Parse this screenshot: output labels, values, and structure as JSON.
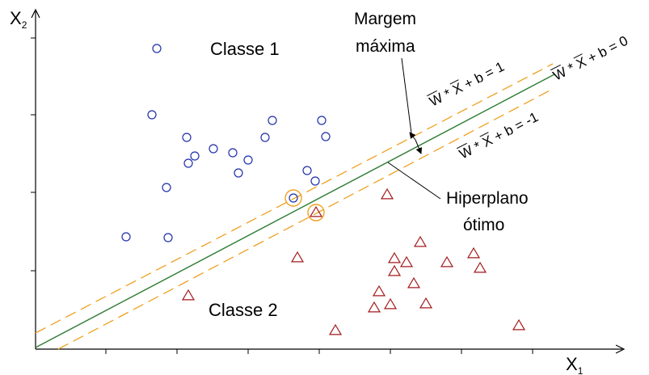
{
  "axes": {
    "x_label": "X",
    "x_sub": "1",
    "y_label": "X",
    "y_sub": "2"
  },
  "classes": {
    "class1_label": "Classe 1",
    "class2_label": "Classe 2",
    "class1_color": "#1f2fa8",
    "class2_color": "#a3191b"
  },
  "annotations": {
    "margin_line1": "Margem",
    "margin_line2": "máxima",
    "hyperplane_line1": "Hiperplano",
    "hyperplane_line2": "ótimo"
  },
  "equations": {
    "upper": {
      "w": "W",
      "star": "*",
      "x": "X",
      "rest": "+ b = 1"
    },
    "center": {
      "w": "W",
      "star": "*",
      "x": "X",
      "rest": "+ b = 0"
    },
    "lower": {
      "w": "W",
      "star": "*",
      "x": "X",
      "rest": "+ b = -1"
    }
  },
  "lines": {
    "hyperplane_color": "#2e7d32",
    "margin_color": "#f0a020",
    "support_ring_color": "#f0a020"
  },
  "class1_points": [
    [
      194,
      60
    ],
    [
      188,
      142
    ],
    [
      231,
      170
    ],
    [
      241,
      193
    ],
    [
      233,
      202
    ],
    [
      264,
      184
    ],
    [
      288,
      189
    ],
    [
      295,
      214
    ],
    [
      307,
      198
    ],
    [
      328,
      170
    ],
    [
      337,
      149
    ],
    [
      398,
      149
    ],
    [
      403,
      169
    ],
    [
      380,
      211
    ],
    [
      390,
      224
    ],
    [
      206,
      232
    ],
    [
      156,
      293
    ],
    [
      208,
      294
    ]
  ],
  "class1_support": [
    [
      363,
      245
    ]
  ],
  "class2_points": [
    [
      479,
      241
    ],
    [
      368,
      319
    ],
    [
      233,
      366
    ],
    [
      415,
      409
    ],
    [
      488,
      320
    ],
    [
      488,
      336
    ],
    [
      503,
      325
    ],
    [
      520,
      300
    ],
    [
      512,
      351
    ],
    [
      469,
      361
    ],
    [
      463,
      381
    ],
    [
      483,
      377
    ],
    [
      527,
      376
    ],
    [
      553,
      325
    ],
    [
      586,
      314
    ],
    [
      594,
      332
    ],
    [
      642,
      403
    ]
  ],
  "class2_support": [
    [
      391,
      263
    ]
  ]
}
